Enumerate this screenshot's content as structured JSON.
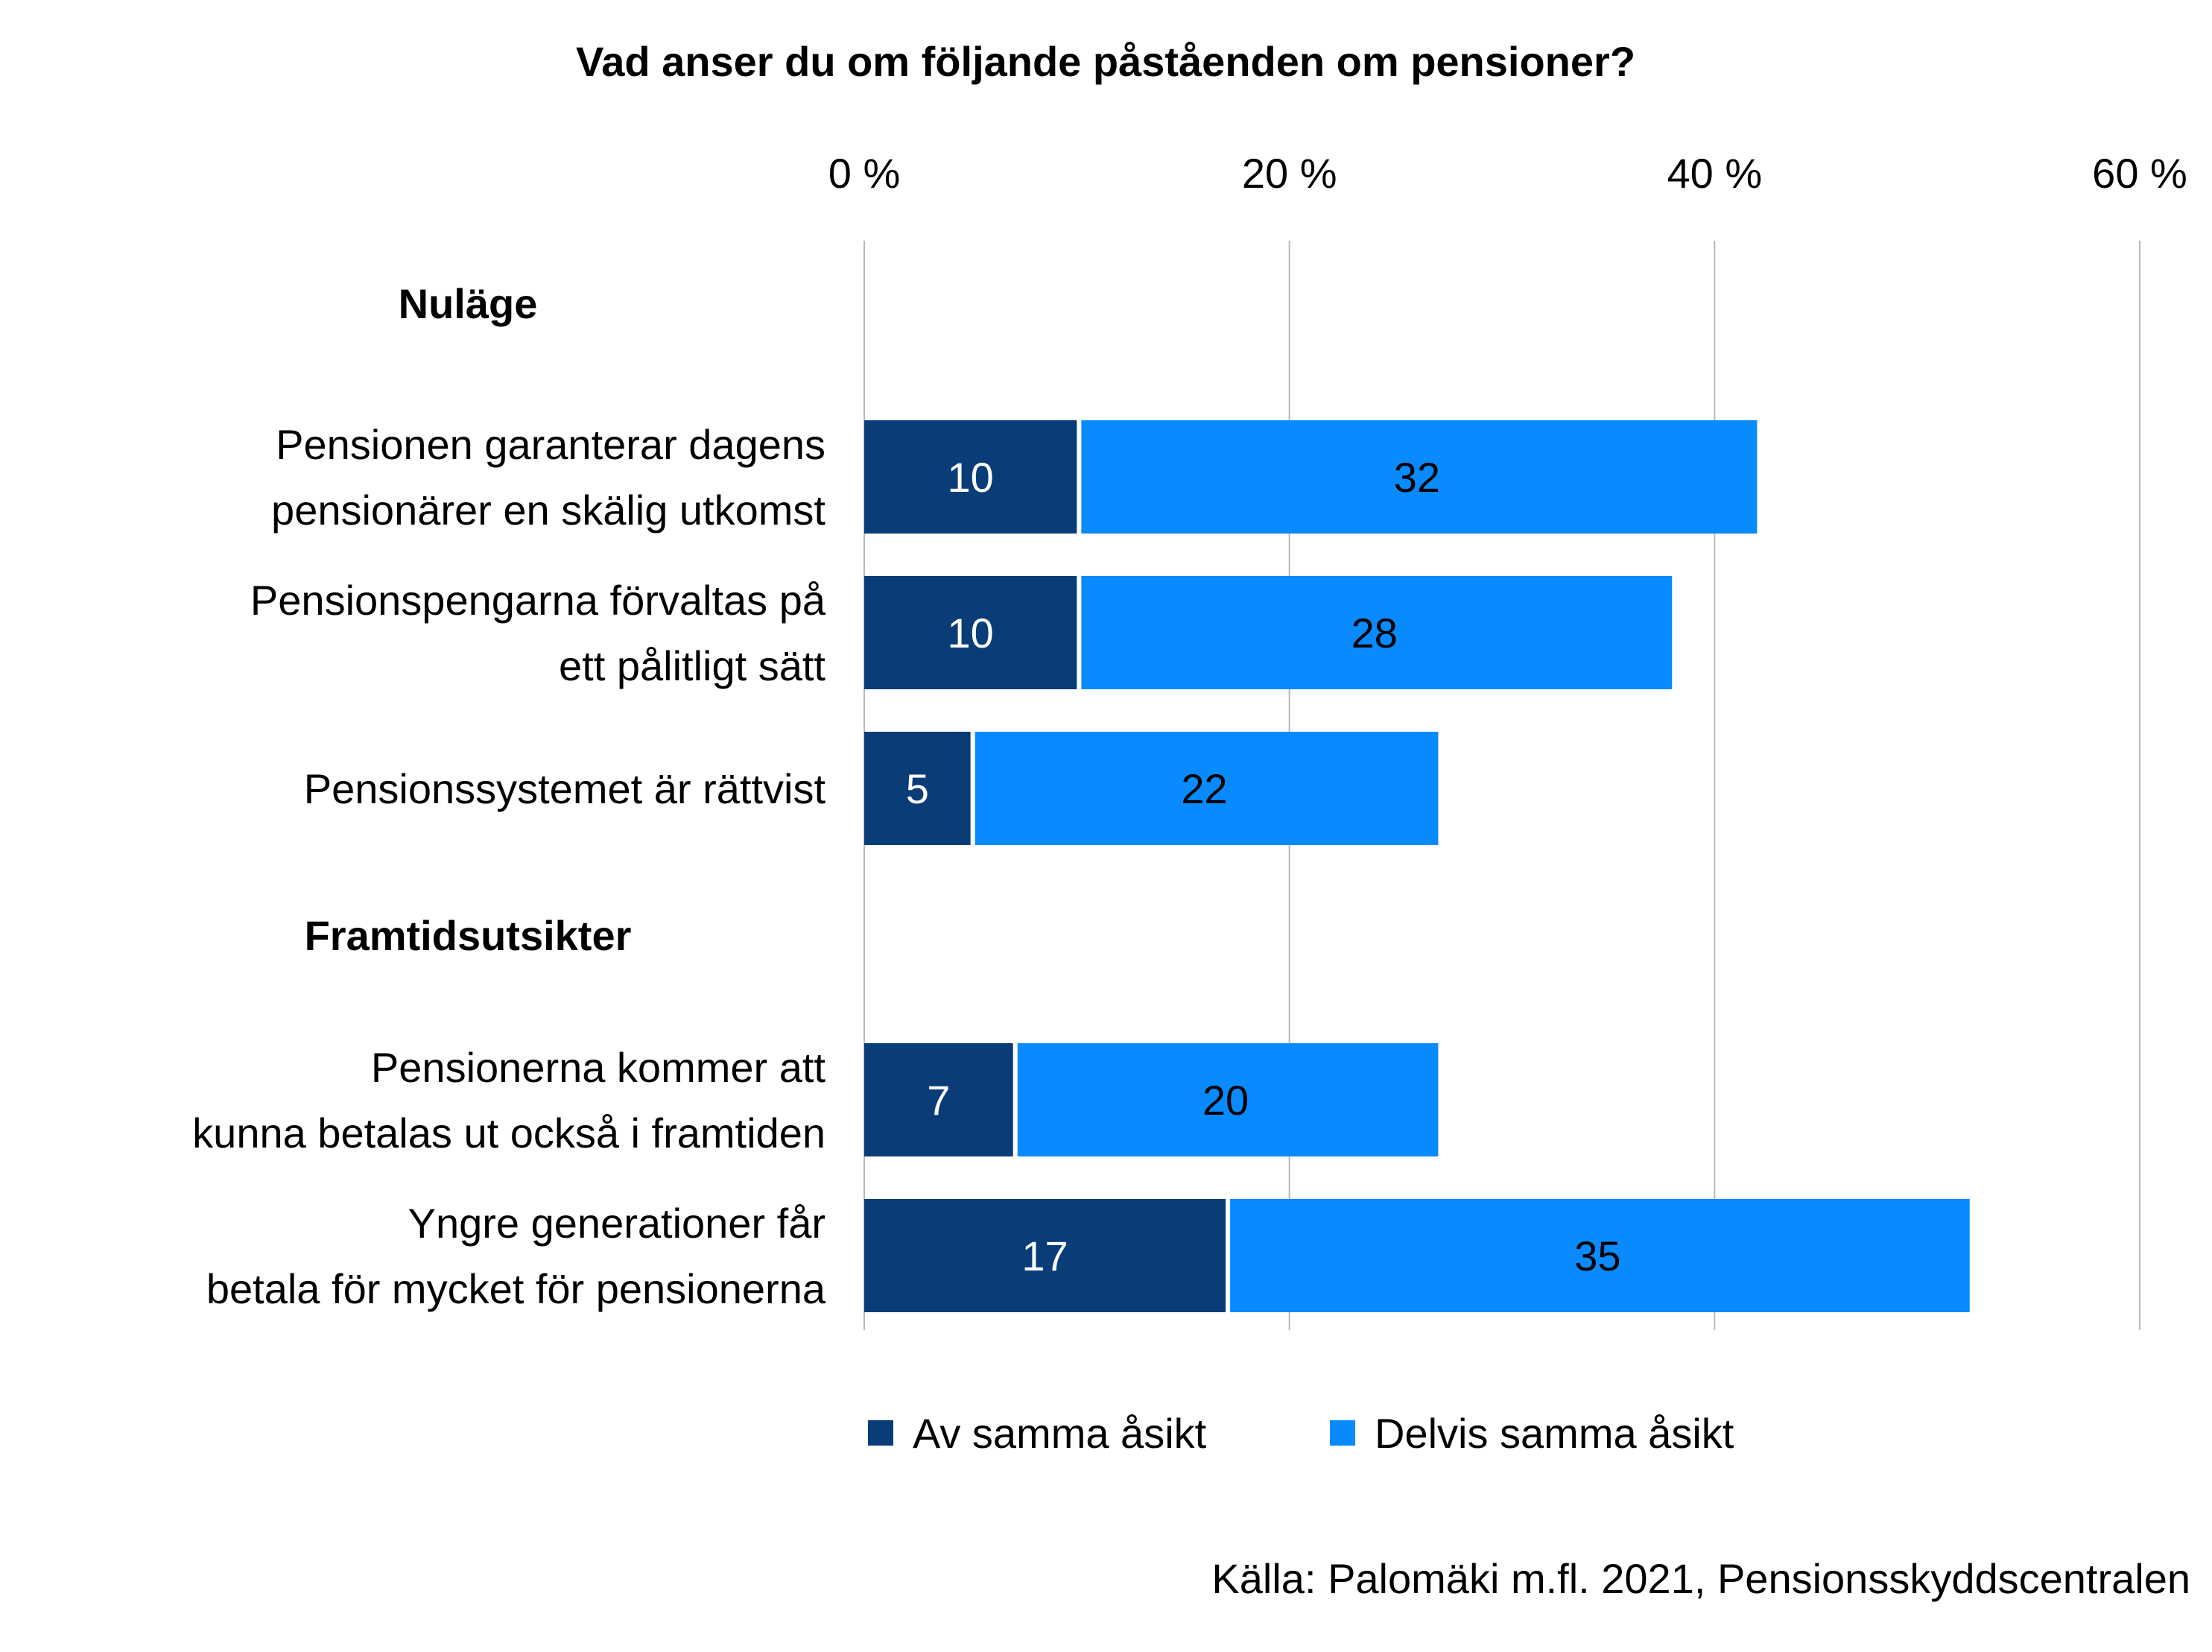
{
  "chart_data": {
    "type": "bar",
    "orientation": "horizontal",
    "stacked": true,
    "title": "Vad anser du om följande påståenden om pensioner?",
    "xlim": [
      0,
      60
    ],
    "xticks": [
      0,
      20,
      40,
      60
    ],
    "xtick_labels": [
      "0 %",
      "20 %",
      "40 %",
      "60 %"
    ],
    "grid": true,
    "legend_position": "bottom",
    "groups": [
      {
        "title": "Nuläge",
        "categories": [
          [
            "Pensionen garanterar dagens",
            "pensionärer en skälig utkomst"
          ],
          [
            "Pensionspengarna förvaltas på",
            "ett pålitligt sätt"
          ],
          [
            "Pensionssystemet är rättvist"
          ]
        ],
        "values_first": [
          10,
          10,
          5
        ],
        "values_second": [
          32,
          28,
          22
        ]
      },
      {
        "title": "Framtidsutsikter",
        "categories": [
          [
            "Pensionerna kommer att",
            "kunna betalas ut också i framtiden"
          ],
          [
            "Yngre generationer får",
            "betala för mycket för pensionerna"
          ]
        ],
        "values_first": [
          7,
          17
        ],
        "values_second": [
          20,
          35
        ]
      }
    ],
    "series": [
      {
        "name": "Av samma åsikt",
        "color": "#0a3d78"
      },
      {
        "name": "Delvis samma åsikt",
        "color": "#0a8aff"
      }
    ],
    "source": "Källa: Palomäki m.fl. 2021, Pensionsskyddscentralen"
  }
}
